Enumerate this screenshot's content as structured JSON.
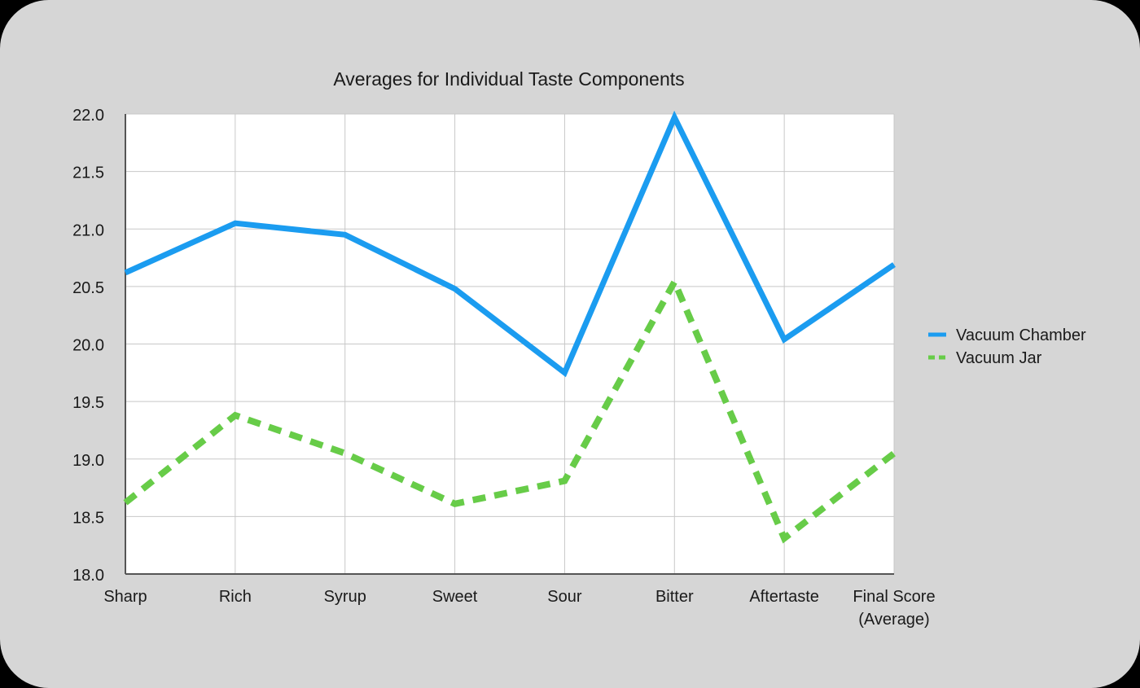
{
  "chart_data": {
    "type": "line",
    "title": "Averages for Individual Taste Components",
    "xlabel": "",
    "ylabel": "",
    "categories": [
      "Sharp",
      "Rich",
      "Syrup",
      "Sweet",
      "Sour",
      "Bitter",
      "Aftertaste",
      "Final Score\n(Average)"
    ],
    "ylim": [
      18.0,
      22.0
    ],
    "yticks": [
      "18.0",
      "18.5",
      "19.0",
      "19.5",
      "20.0",
      "20.5",
      "21.0",
      "21.5",
      "22.0"
    ],
    "grid": true,
    "legend_position": "right",
    "series": [
      {
        "name": "Vacuum Chamber",
        "values": [
          20.62,
          21.05,
          20.95,
          20.48,
          19.75,
          21.97,
          20.04,
          20.69
        ],
        "color": "#1b9cf0",
        "style": "solid"
      },
      {
        "name": "Vacuum Jar",
        "values": [
          18.62,
          19.38,
          19.05,
          18.61,
          18.81,
          20.54,
          18.31,
          19.05
        ],
        "color": "#67cc48",
        "style": "dashed"
      }
    ]
  }
}
